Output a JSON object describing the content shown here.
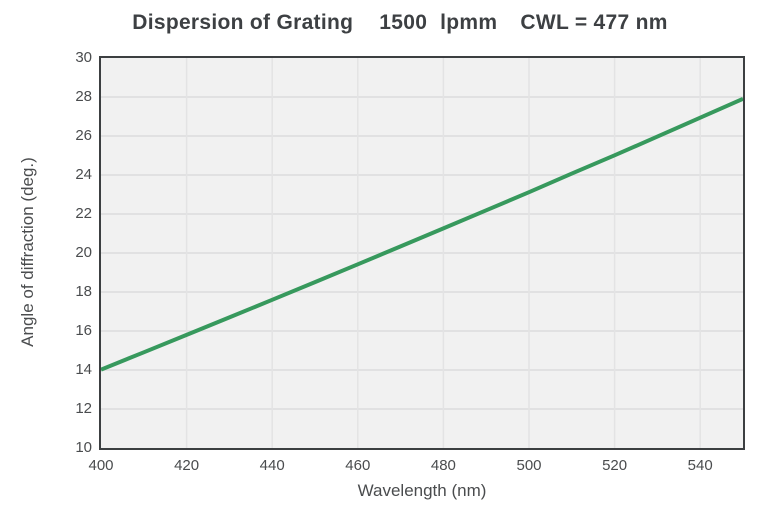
{
  "chart_data": {
    "type": "line",
    "title": "Dispersion of Grating 1500 lpmm CWL = 477 nm",
    "title_parts": [
      "Dispersion of Grating",
      "1500",
      "lpmm",
      "CWL = 477 nm"
    ],
    "grating_lines_per_mm": 1500,
    "center_wavelength_nm": 477,
    "xlabel": "Wavelength (nm)",
    "ylabel": "Angle of diffraction (deg.)",
    "xlim": [
      400,
      550
    ],
    "ylim": [
      10,
      30
    ],
    "xticks": [
      400,
      420,
      440,
      460,
      480,
      500,
      520,
      540
    ],
    "yticks": [
      10,
      12,
      14,
      16,
      18,
      20,
      22,
      24,
      26,
      28,
      30
    ],
    "grid": true,
    "legend": false,
    "series": [
      {
        "name": "Angle of diffraction",
        "x": [
          400,
          410,
          420,
          430,
          440,
          450,
          460,
          470,
          480,
          490,
          500,
          510,
          520,
          530,
          540,
          550
        ],
        "y": [
          14.02,
          14.91,
          15.8,
          16.7,
          17.6,
          18.51,
          19.42,
          20.34,
          21.26,
          22.19,
          23.12,
          24.07,
          25.01,
          25.97,
          26.94,
          27.91
        ]
      }
    ],
    "colors": {
      "line": "#37995d",
      "plot_bg": "#f1f1f1",
      "grid_h": "#dcdcdd",
      "grid_v": "#e3e3e4",
      "frame": "#3c3f41",
      "title_text": "#3d4043",
      "label_text": "#4a4c4e"
    }
  }
}
